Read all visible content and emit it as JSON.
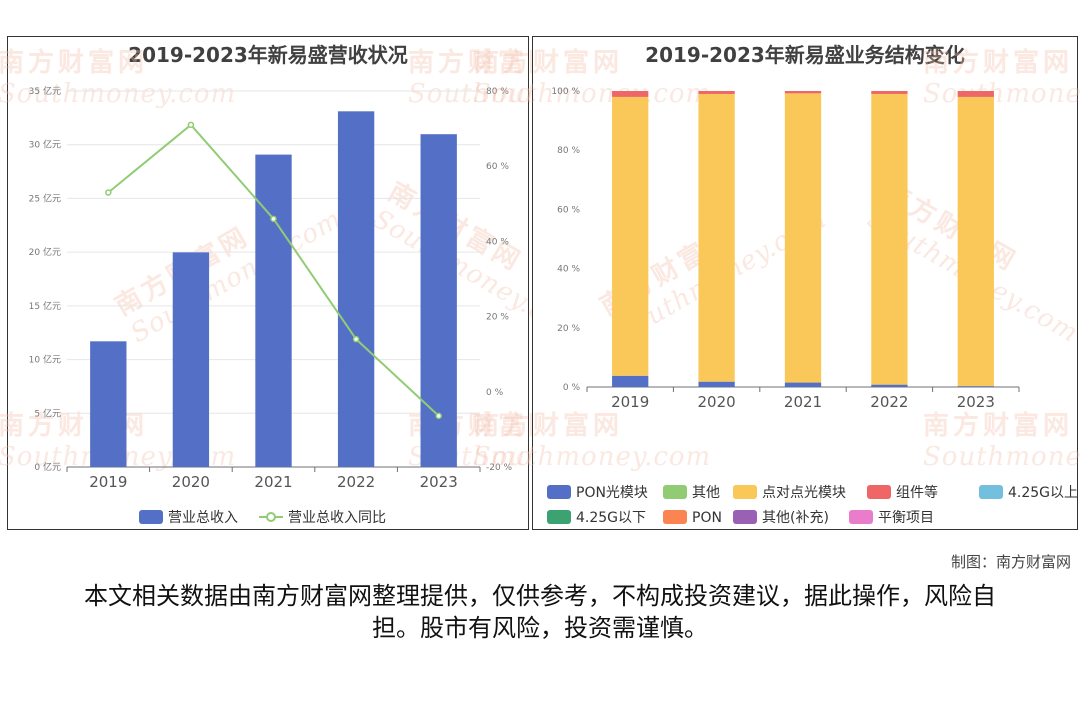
{
  "watermark": {
    "cn": "南方财富网",
    "en": "Southmoney.com"
  },
  "credit": "制图：南方财富网",
  "disclaimer": "本文相关数据由南方财富网整理提供，仅供参考，不构成投资建议，据此操作，风险自担。股市有风险，投资需谨慎。",
  "chart_data": [
    {
      "type": "bar",
      "title": "2019-2023年新易盛营收状况",
      "categories": [
        "2019",
        "2020",
        "2021",
        "2022",
        "2023"
      ],
      "series": [
        {
          "name": "营业总收入",
          "type": "bar",
          "axis": "left",
          "color": "#5470c6",
          "values": [
            11.7,
            19.98,
            29.08,
            33.11,
            30.98
          ]
        },
        {
          "name": "营业总收入同比",
          "type": "line",
          "axis": "right",
          "color": "#91cc75",
          "values": [
            53.0,
            71.0,
            46.0,
            14.0,
            -6.4
          ]
        }
      ],
      "y_left": {
        "min": 0,
        "max": 35,
        "step": 5,
        "unit": " 亿元",
        "ticks": [
          "0 亿元",
          "5 亿元",
          "10 亿元",
          "15 亿元",
          "20 亿元",
          "25 亿元",
          "30 亿元",
          "35 亿元"
        ]
      },
      "y_right": {
        "min": -20,
        "max": 80,
        "step": 20,
        "unit": " %",
        "ticks": [
          "-20 %",
          "0 %",
          "20 %",
          "40 %",
          "60 %",
          "80 %"
        ]
      },
      "grid": true,
      "legend": "bottom"
    },
    {
      "type": "bar",
      "stacked": true,
      "title": "2019-2023年新易盛业务结构变化",
      "categories": [
        "2019",
        "2020",
        "2021",
        "2022",
        "2023"
      ],
      "series": [
        {
          "name": "PON光模块",
          "color": "#5470c6",
          "values": [
            3.8,
            1.8,
            1.5,
            0.8,
            0.3
          ]
        },
        {
          "name": "其他",
          "color": "#91cc75",
          "values": [
            0,
            0,
            0,
            0,
            0
          ]
        },
        {
          "name": "点对点光模块",
          "color": "#fac858",
          "values": [
            94.2,
            97.2,
            97.7,
            98.2,
            97.7
          ]
        },
        {
          "name": "组件等",
          "color": "#ee6666",
          "values": [
            2.0,
            1.0,
            0.8,
            1.0,
            2.0
          ]
        },
        {
          "name": "4.25G以上",
          "color": "#73c0de",
          "values": [
            0,
            0,
            0,
            0,
            0
          ]
        },
        {
          "name": "4.25G以下",
          "color": "#3ba272",
          "values": [
            0,
            0,
            0,
            0,
            0
          ]
        },
        {
          "name": "PON",
          "color": "#fc8452",
          "values": [
            0,
            0,
            0,
            0,
            0
          ]
        },
        {
          "name": "其他(补充)",
          "color": "#9a60b4",
          "values": [
            0,
            0,
            0,
            0,
            0
          ]
        },
        {
          "name": "平衡项目",
          "color": "#ea7ccc",
          "values": [
            0,
            0,
            0,
            0,
            0
          ]
        }
      ],
      "y": {
        "min": 0,
        "max": 100,
        "step": 20,
        "ticks": [
          "0 %",
          "20 %",
          "40 %",
          "60 %",
          "80 %",
          "100 %"
        ]
      },
      "grid": false,
      "legend": "bottom"
    }
  ]
}
